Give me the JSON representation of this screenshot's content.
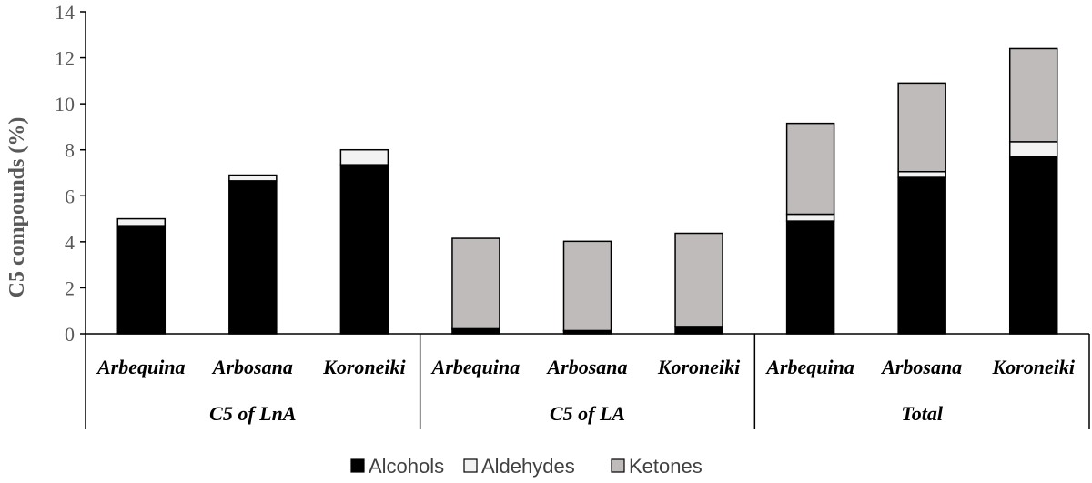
{
  "chart_data": {
    "type": "bar",
    "stacked": true,
    "ylabel": "C5 compounds (%)",
    "ylim": [
      0,
      14
    ],
    "yticks": [
      "0",
      "2",
      "4",
      "6",
      "8",
      "10",
      "12",
      "14"
    ],
    "groups": [
      {
        "label": "C5 of LnA",
        "categories": [
          "Arbequina",
          "Arbosana",
          "Koroneiki"
        ]
      },
      {
        "label": "C5 of LA",
        "categories": [
          "Arbequina",
          "Arbosana",
          "Koroneiki"
        ]
      },
      {
        "label": "Total",
        "categories": [
          "Arbequina",
          "Arbosana",
          "Koroneiki"
        ]
      }
    ],
    "series": [
      {
        "name": "Alcohols",
        "color": "#000000",
        "values": [
          4.7,
          6.65,
          7.35,
          0.2,
          0.12,
          0.3,
          4.9,
          6.8,
          7.7
        ]
      },
      {
        "name": "Aldehydes",
        "color": "#f2f2f2",
        "values": [
          0.3,
          0.25,
          0.65,
          0.02,
          0.02,
          0.02,
          0.3,
          0.25,
          0.65
        ]
      },
      {
        "name": "Ketones",
        "color": "#bfbbbb",
        "values": [
          0.0,
          0.0,
          0.0,
          3.93,
          3.88,
          4.05,
          3.95,
          3.85,
          4.05
        ]
      }
    ],
    "grid": false,
    "legend_position": "bottom"
  }
}
